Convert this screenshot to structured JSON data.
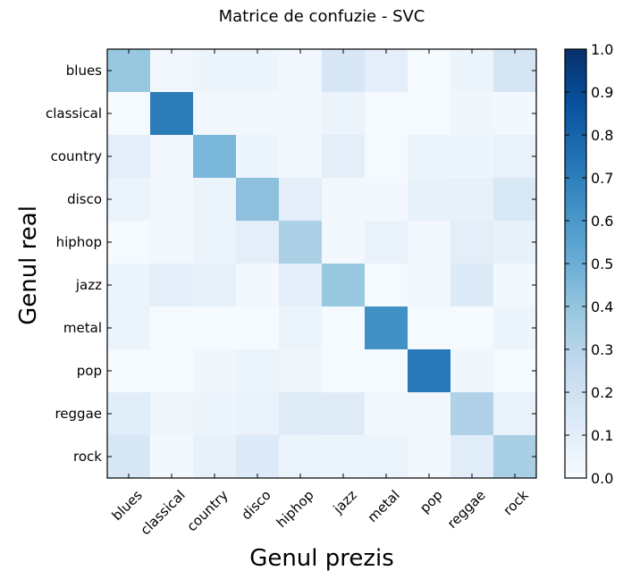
{
  "chart_data": {
    "type": "heatmap",
    "title": "Matrice de confuzie - SVC",
    "xlabel": "Genul prezis",
    "ylabel": "Genul real",
    "x_categories": [
      "blues",
      "classical",
      "country",
      "disco",
      "hiphop",
      "jazz",
      "metal",
      "pop",
      "reggae",
      "rock"
    ],
    "y_categories": [
      "blues",
      "classical",
      "country",
      "disco",
      "hiphop",
      "jazz",
      "metal",
      "pop",
      "reggae",
      "rock"
    ],
    "values": [
      [
        0.39,
        0.03,
        0.05,
        0.05,
        0.03,
        0.16,
        0.09,
        0.01,
        0.05,
        0.17
      ],
      [
        0.01,
        0.71,
        0.03,
        0.02,
        0.02,
        0.06,
        0.01,
        0.01,
        0.04,
        0.02
      ],
      [
        0.1,
        0.03,
        0.46,
        0.05,
        0.03,
        0.1,
        0.01,
        0.06,
        0.05,
        0.07
      ],
      [
        0.06,
        0.02,
        0.06,
        0.42,
        0.1,
        0.02,
        0.02,
        0.08,
        0.08,
        0.15
      ],
      [
        0.01,
        0.02,
        0.06,
        0.1,
        0.33,
        0.02,
        0.07,
        0.03,
        0.1,
        0.08
      ],
      [
        0.05,
        0.1,
        0.08,
        0.02,
        0.09,
        0.39,
        0.01,
        0.02,
        0.13,
        0.02
      ],
      [
        0.06,
        0.01,
        0.01,
        0.01,
        0.06,
        0.01,
        0.63,
        0.01,
        0.01,
        0.05
      ],
      [
        0.01,
        0.01,
        0.04,
        0.06,
        0.04,
        0.01,
        0.01,
        0.72,
        0.04,
        0.01
      ],
      [
        0.11,
        0.04,
        0.05,
        0.07,
        0.12,
        0.12,
        0.03,
        0.03,
        0.32,
        0.07
      ],
      [
        0.16,
        0.02,
        0.08,
        0.13,
        0.06,
        0.05,
        0.06,
        0.02,
        0.11,
        0.34
      ]
    ],
    "colorbar": {
      "min": 0.0,
      "max": 1.0,
      "ticks": [
        "0.0",
        "0.1",
        "0.2",
        "0.3",
        "0.4",
        "0.5",
        "0.6",
        "0.7",
        "0.8",
        "0.9",
        "1.0"
      ]
    },
    "colormap": "Blues",
    "grid": false,
    "legend": "colorbar-right"
  }
}
